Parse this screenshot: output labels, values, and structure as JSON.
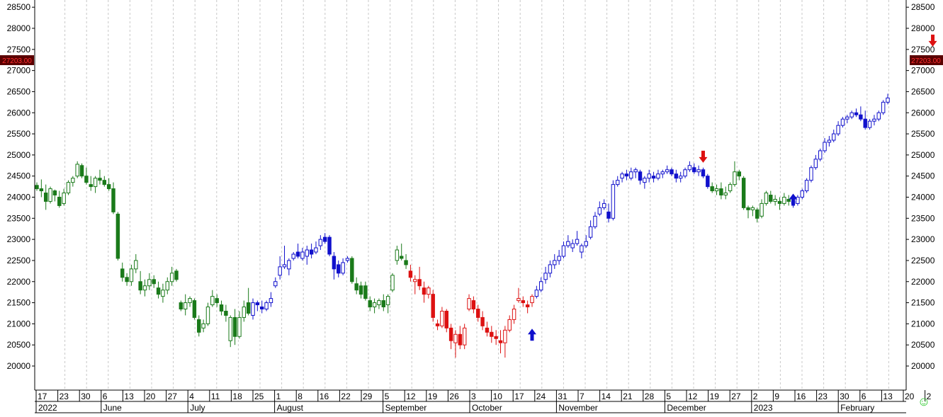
{
  "chart_data": {
    "type": "candlestick",
    "ylim": [
      19500,
      28500
    ],
    "grid": "vertical-dashed",
    "y_ticks": [
      20000,
      20500,
      21000,
      21500,
      22000,
      22500,
      23000,
      23500,
      24000,
      24500,
      25000,
      25500,
      26000,
      26500,
      27000,
      27500,
      28000,
      28500
    ],
    "y_tick_labels": [
      "20000",
      "20500",
      "21000",
      "21500",
      "22000",
      "22500",
      "23000",
      "23500",
      "24000",
      "24500",
      "25000",
      "25500",
      "26000",
      "26500",
      "27000",
      "27500",
      "28000",
      "28500"
    ],
    "last_price_label": "27203.00",
    "last_price": 27203,
    "x_tick_labels": [
      "17",
      "23",
      "30",
      "6",
      "13",
      "20",
      "27",
      "4",
      "11",
      "18",
      "25",
      "1",
      "8",
      "16",
      "22",
      "29",
      "5",
      "12",
      "19",
      "26",
      "3",
      "10",
      "17",
      "24",
      "31",
      "7",
      "14",
      "21",
      "28",
      "5",
      "12",
      "19",
      "27",
      "2",
      "9",
      "16",
      "23",
      "30",
      "6",
      "13",
      "20",
      "2"
    ],
    "month_labels": [
      {
        "label": "2022",
        "tick": 0
      },
      {
        "label": "June",
        "tick": 3
      },
      {
        "label": "July",
        "tick": 7
      },
      {
        "label": "August",
        "tick": 11
      },
      {
        "label": "September",
        "tick": 16
      },
      {
        "label": "October",
        "tick": 20
      },
      {
        "label": "November",
        "tick": 24
      },
      {
        "label": "December",
        "tick": 29
      },
      {
        "label": "2023",
        "tick": 33
      },
      {
        "label": "February",
        "tick": 37
      }
    ],
    "colors": {
      "green": "#1a7a1a",
      "blue": "#1010cc",
      "red": "#dd1111",
      "grid": "#c8c8c8",
      "price_tag_bg": "#5a0000",
      "price_tag_fg": "#ff3030",
      "smiley": "#33cc33"
    },
    "segments": [
      {
        "color": "green",
        "start": 0,
        "end": 48
      },
      {
        "color": "blue",
        "start": 48,
        "end": 70
      },
      {
        "color": "green",
        "start": 70,
        "end": 83
      },
      {
        "color": "red",
        "start": 83,
        "end": 111
      },
      {
        "color": "blue",
        "start": 111,
        "end": 150
      },
      {
        "color": "green",
        "start": 150,
        "end": 168
      },
      {
        "color": "blue",
        "start": 168,
        "end": 201
      }
    ],
    "arrows": [
      {
        "dir": "up",
        "color": "blue",
        "bar": 110,
        "price": 20750
      },
      {
        "dir": "down",
        "color": "red",
        "bar": 148,
        "price": 24950
      },
      {
        "dir": "up",
        "color": "blue",
        "bar": 168,
        "price": 23950
      },
      {
        "dir": "down",
        "color": "red",
        "bar": 199,
        "price": 27700
      }
    ],
    "ohlc": [
      [
        24280,
        24350,
        24150,
        24200
      ],
      [
        24200,
        24420,
        24000,
        24150
      ],
      [
        24100,
        24300,
        23700,
        23900
      ],
      [
        23900,
        24250,
        23850,
        24200
      ],
      [
        24150,
        24180,
        23900,
        24050
      ],
      [
        24000,
        24150,
        23750,
        23800
      ],
      [
        23850,
        24200,
        23800,
        24100
      ],
      [
        24100,
        24400,
        24050,
        24350
      ],
      [
        24350,
        24500,
        24250,
        24450
      ],
      [
        24500,
        24850,
        24450,
        24780
      ],
      [
        24750,
        24800,
        24450,
        24500
      ],
      [
        24500,
        24700,
        24300,
        24350
      ],
      [
        24300,
        24500,
        24150,
        24250
      ],
      [
        24250,
        24500,
        24100,
        24450
      ],
      [
        24450,
        24650,
        24300,
        24400
      ],
      [
        24400,
        24500,
        24250,
        24300
      ],
      [
        24300,
        24450,
        24150,
        24200
      ],
      [
        24200,
        24350,
        23600,
        23650
      ],
      [
        23600,
        23650,
        22500,
        22550
      ],
      [
        22300,
        22450,
        22000,
        22100
      ],
      [
        22100,
        22200,
        21900,
        22000
      ],
      [
        22000,
        22400,
        21900,
        22300
      ],
      [
        22300,
        22650,
        22200,
        22500
      ],
      [
        22000,
        22250,
        21700,
        21800
      ],
      [
        21800,
        22050,
        21650,
        21900
      ],
      [
        21900,
        22200,
        21800,
        22050
      ],
      [
        22050,
        22150,
        21850,
        21950
      ],
      [
        21850,
        22000,
        21600,
        21700
      ],
      [
        21650,
        21950,
        21500,
        21800
      ],
      [
        21800,
        22100,
        21700,
        22000
      ],
      [
        22000,
        22350,
        21900,
        22200
      ],
      [
        22250,
        22300,
        22000,
        22050
      ],
      [
        21500,
        21550,
        21300,
        21350
      ],
      [
        21350,
        21700,
        21200,
        21500
      ],
      [
        21500,
        21650,
        21400,
        21600
      ],
      [
        21550,
        21600,
        21100,
        21150
      ],
      [
        21100,
        21200,
        20700,
        20800
      ],
      [
        20900,
        21100,
        20800,
        21000
      ],
      [
        21000,
        21500,
        20950,
        21400
      ],
      [
        21450,
        21800,
        21400,
        21650
      ],
      [
        21600,
        21700,
        21400,
        21500
      ],
      [
        21450,
        21550,
        21200,
        21300
      ],
      [
        21300,
        21450,
        21050,
        21200
      ],
      [
        20600,
        21200,
        20450,
        21150
      ],
      [
        21150,
        21350,
        20500,
        20700
      ],
      [
        20700,
        21300,
        20650,
        21150
      ],
      [
        21150,
        21550,
        21050,
        21400
      ],
      [
        21500,
        21850,
        21200,
        21250
      ],
      [
        21200,
        21600,
        21100,
        21500
      ],
      [
        21500,
        21550,
        21300,
        21450
      ],
      [
        21400,
        21550,
        21250,
        21350
      ],
      [
        21350,
        21550,
        21300,
        21500
      ],
      [
        21500,
        21750,
        21400,
        21600
      ],
      [
        21900,
        22100,
        21850,
        22000
      ],
      [
        22150,
        22600,
        22050,
        22350
      ],
      [
        22350,
        22850,
        22300,
        22400
      ],
      [
        22300,
        22550,
        22150,
        22500
      ],
      [
        22550,
        22700,
        22500,
        22650
      ],
      [
        22700,
        22900,
        22550,
        22600
      ],
      [
        22550,
        22800,
        22500,
        22700
      ],
      [
        22600,
        22850,
        22400,
        22750
      ],
      [
        22750,
        22900,
        22550,
        22650
      ],
      [
        22700,
        22950,
        22650,
        22800
      ],
      [
        22850,
        23100,
        22750,
        23000
      ],
      [
        23050,
        23150,
        22900,
        22950
      ],
      [
        23050,
        23100,
        22600,
        22650
      ],
      [
        22600,
        22700,
        22050,
        22300
      ],
      [
        22400,
        22500,
        22100,
        22200
      ],
      [
        22200,
        22550,
        22150,
        22450
      ],
      [
        22500,
        22600,
        22450,
        22550
      ],
      [
        22550,
        22600,
        21950,
        22000
      ],
      [
        21950,
        22100,
        21700,
        21800
      ],
      [
        21900,
        22000,
        21600,
        21700
      ],
      [
        21900,
        22000,
        21550,
        21600
      ],
      [
        21550,
        21650,
        21300,
        21400
      ],
      [
        21400,
        21600,
        21250,
        21500
      ],
      [
        21450,
        21600,
        21350,
        21550
      ],
      [
        21550,
        21700,
        21300,
        21400
      ],
      [
        21450,
        21700,
        21250,
        21650
      ],
      [
        21800,
        22200,
        21750,
        22150
      ],
      [
        22500,
        22850,
        22400,
        22750
      ],
      [
        22600,
        22900,
        22500,
        22550
      ],
      [
        22500,
        22650,
        22300,
        22400
      ],
      [
        22250,
        22400,
        22000,
        22100
      ],
      [
        22000,
        22150,
        21700,
        22050
      ],
      [
        22050,
        22350,
        21800,
        21900
      ],
      [
        21850,
        22000,
        21500,
        21700
      ],
      [
        21700,
        21900,
        21600,
        21850
      ],
      [
        21700,
        21800,
        21050,
        21150
      ],
      [
        21000,
        21100,
        20850,
        20950
      ],
      [
        20950,
        21400,
        20900,
        21300
      ],
      [
        21300,
        21350,
        20800,
        20900
      ],
      [
        20900,
        21000,
        20400,
        20600
      ],
      [
        20550,
        20850,
        20200,
        20750
      ],
      [
        20750,
        20950,
        20400,
        20500
      ],
      [
        20500,
        21000,
        20400,
        20900
      ],
      [
        21350,
        21700,
        21300,
        21600
      ],
      [
        21550,
        21650,
        21250,
        21350
      ],
      [
        21350,
        21450,
        21050,
        21150
      ],
      [
        21150,
        21300,
        20850,
        20950
      ],
      [
        20900,
        21050,
        20700,
        20800
      ],
      [
        20800,
        20950,
        20550,
        20700
      ],
      [
        20700,
        20850,
        20500,
        20650
      ],
      [
        20600,
        20850,
        20300,
        20550
      ],
      [
        20550,
        20950,
        20200,
        20850
      ],
      [
        20850,
        21200,
        20800,
        21100
      ],
      [
        21100,
        21450,
        21000,
        21350
      ],
      [
        21550,
        21850,
        21500,
        21600
      ],
      [
        21550,
        21650,
        21400,
        21500
      ],
      [
        21450,
        21550,
        21250,
        21400
      ],
      [
        21500,
        21700,
        21400,
        21650
      ],
      [
        21650,
        21900,
        21600,
        21800
      ],
      [
        21800,
        22100,
        21750,
        22000
      ],
      [
        22050,
        22350,
        21950,
        22200
      ],
      [
        22200,
        22500,
        22100,
        22400
      ],
      [
        22400,
        22650,
        22300,
        22500
      ],
      [
        22500,
        22750,
        22400,
        22600
      ],
      [
        22600,
        22950,
        22550,
        22850
      ],
      [
        22850,
        23100,
        22800,
        22950
      ],
      [
        22800,
        23000,
        22700,
        22900
      ],
      [
        22900,
        23200,
        22850,
        23000
      ],
      [
        22700,
        22900,
        22550,
        22850
      ],
      [
        22850,
        23100,
        22800,
        22950
      ],
      [
        23050,
        23450,
        23000,
        23300
      ],
      [
        23300,
        23650,
        23250,
        23550
      ],
      [
        23600,
        23900,
        23550,
        23750
      ],
      [
        23750,
        23950,
        23700,
        23850
      ],
      [
        23650,
        23850,
        23400,
        23500
      ],
      [
        23500,
        24400,
        23450,
        24300
      ],
      [
        24300,
        24500,
        24250,
        24400
      ],
      [
        24450,
        24600,
        24350,
        24550
      ],
      [
        24550,
        24650,
        24400,
        24500
      ],
      [
        24450,
        24700,
        24400,
        24600
      ],
      [
        24600,
        24700,
        24450,
        24650
      ],
      [
        24600,
        24650,
        24300,
        24400
      ],
      [
        24350,
        24500,
        24200,
        24450
      ],
      [
        24450,
        24650,
        24350,
        24550
      ],
      [
        24500,
        24600,
        24350,
        24450
      ],
      [
        24450,
        24650,
        24400,
        24550
      ],
      [
        24550,
        24650,
        24450,
        24600
      ],
      [
        24600,
        24750,
        24550,
        24650
      ],
      [
        24650,
        24700,
        24500,
        24550
      ],
      [
        24550,
        24650,
        24350,
        24450
      ],
      [
        24450,
        24600,
        24350,
        24500
      ],
      [
        24500,
        24700,
        24450,
        24650
      ],
      [
        24650,
        24850,
        24600,
        24750
      ],
      [
        24700,
        24800,
        24550,
        24600
      ],
      [
        24600,
        24750,
        24500,
        24650
      ],
      [
        24650,
        24700,
        24450,
        24500
      ],
      [
        24500,
        24550,
        24200,
        24250
      ],
      [
        24250,
        24350,
        24100,
        24150
      ],
      [
        24150,
        24300,
        24050,
        24200
      ],
      [
        24200,
        24350,
        23950,
        24050
      ],
      [
        24050,
        24250,
        23950,
        24100
      ],
      [
        24150,
        24350,
        24100,
        24300
      ],
      [
        24300,
        24850,
        24250,
        24600
      ],
      [
        24600,
        24650,
        24400,
        24500
      ],
      [
        24450,
        24500,
        23700,
        23750
      ],
      [
        23750,
        23800,
        23500,
        23700
      ],
      [
        23700,
        23800,
        23550,
        23750
      ],
      [
        23700,
        23750,
        23400,
        23500
      ],
      [
        23550,
        23950,
        23500,
        23850
      ],
      [
        23850,
        24150,
        23800,
        24100
      ],
      [
        24050,
        24150,
        23850,
        23900
      ],
      [
        23900,
        24050,
        23800,
        23950
      ],
      [
        23900,
        24000,
        23700,
        23850
      ],
      [
        23850,
        24100,
        23800,
        24000
      ],
      [
        23950,
        24050,
        23800,
        23900
      ],
      [
        23900,
        24050,
        23750,
        23850
      ],
      [
        23850,
        24050,
        23800,
        24000
      ],
      [
        24000,
        24200,
        23950,
        24150
      ],
      [
        24150,
        24450,
        24100,
        24400
      ],
      [
        24400,
        24750,
        24350,
        24700
      ],
      [
        24700,
        25000,
        24650,
        24900
      ],
      [
        24900,
        25150,
        24850,
        25100
      ],
      [
        25100,
        25400,
        25050,
        25300
      ],
      [
        25300,
        25450,
        25200,
        25350
      ],
      [
        25350,
        25600,
        25300,
        25500
      ],
      [
        25500,
        25800,
        25450,
        25700
      ],
      [
        25700,
        25900,
        25650,
        25850
      ],
      [
        25850,
        25950,
        25750,
        25900
      ],
      [
        25900,
        26050,
        25850,
        26000
      ],
      [
        26000,
        26100,
        25900,
        25950
      ],
      [
        25950,
        26150,
        25800,
        25850
      ],
      [
        25850,
        26050,
        25600,
        25650
      ],
      [
        25650,
        25850,
        25600,
        25800
      ],
      [
        25800,
        25950,
        25700,
        25850
      ],
      [
        25850,
        26050,
        25800,
        26000
      ],
      [
        26000,
        26300,
        25950,
        26250
      ],
      [
        26250,
        26450,
        26200,
        26350
      ]
    ]
  }
}
